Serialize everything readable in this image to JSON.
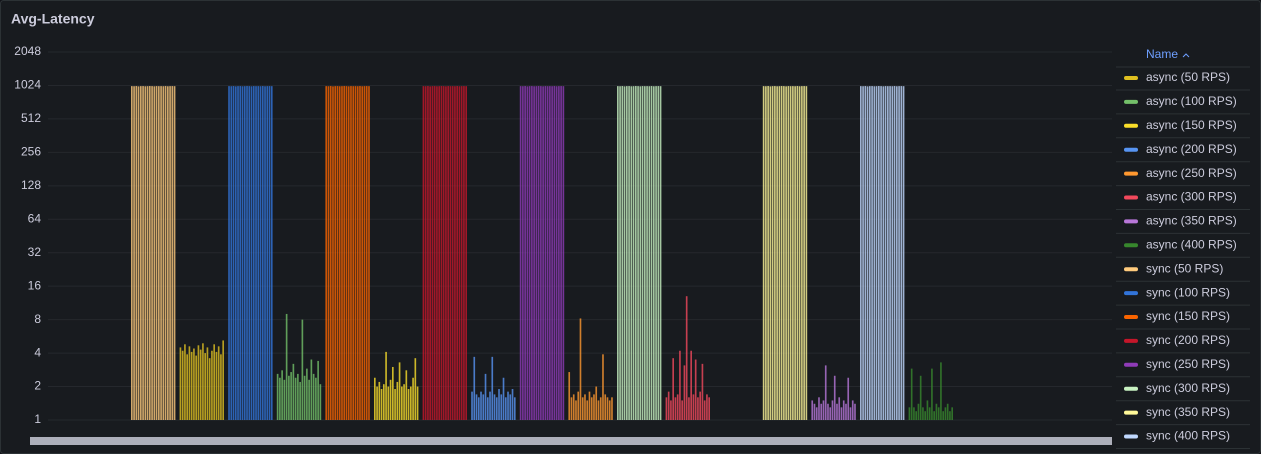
{
  "chart_data": {
    "type": "bar",
    "title": "Avg-Latency",
    "legend_header": "Name",
    "log_base": 2,
    "ylim": [
      1,
      2048
    ],
    "yticks": [
      1,
      2,
      4,
      8,
      16,
      32,
      64,
      128,
      256,
      512,
      1024,
      2048
    ],
    "grid": true,
    "series": [
      {
        "name": "async (50 RPS)",
        "color": "#e0c020",
        "values": [
          4.5,
          4.2,
          4.8,
          3.9,
          4.6,
          4.1,
          4.4,
          3.8,
          4.7,
          4.3,
          4.9,
          4.0,
          4.5,
          3.6,
          4.2,
          4.8,
          4.1,
          4.6,
          3.9,
          5.2
        ]
      },
      {
        "name": "async (100 RPS)",
        "color": "#73bf69",
        "values": [
          2.6,
          2.4,
          2.8,
          2.3,
          9.0,
          2.5,
          2.7,
          3.2,
          2.4,
          2.6,
          2.2,
          8.0,
          2.5,
          2.9,
          2.3,
          3.5,
          2.6,
          2.4,
          3.4,
          2.1
        ]
      },
      {
        "name": "async (150 RPS)",
        "color": "#fade2a",
        "values": [
          2.4,
          2.0,
          2.2,
          1.9,
          2.1,
          4.1,
          2.0,
          2.3,
          3.0,
          1.9,
          2.2,
          3.3,
          2.0,
          2.1,
          2.8,
          1.9,
          2.0,
          2.4,
          3.6,
          2.0
        ]
      },
      {
        "name": "async (200 RPS)",
        "color": "#5794f2",
        "values": [
          1.8,
          3.7,
          1.7,
          1.6,
          1.8,
          1.7,
          2.6,
          1.6,
          1.8,
          3.7,
          1.7,
          1.6,
          1.9,
          1.7,
          2.4,
          1.6,
          1.8,
          1.7,
          1.9,
          1.6
        ]
      },
      {
        "name": "async (250 RPS)",
        "color": "#ff9830",
        "values": [
          2.7,
          1.6,
          1.7,
          1.5,
          1.8,
          8.2,
          1.6,
          1.7,
          1.5,
          1.8,
          1.6,
          1.7,
          2.0,
          1.5,
          1.6,
          3.9,
          1.7,
          1.6,
          1.5,
          1.6
        ]
      },
      {
        "name": "async (300 RPS)",
        "color": "#f2495c",
        "values": [
          1.6,
          1.8,
          1.5,
          3.6,
          1.6,
          1.7,
          4.2,
          1.5,
          3.1,
          13.0,
          1.6,
          4.2,
          1.7,
          3.5,
          1.6,
          1.8,
          3.2,
          1.5,
          1.7,
          1.6
        ]
      },
      {
        "name": "async (350 RPS)",
        "color": "#b877d9",
        "values": [
          1.5,
          1.4,
          1.3,
          1.6,
          1.4,
          1.5,
          3.1,
          1.4,
          1.3,
          1.5,
          2.5,
          1.4,
          1.6,
          1.3,
          1.5,
          1.4,
          2.4,
          1.3,
          1.5,
          1.4
        ]
      },
      {
        "name": "async (400 RPS)",
        "color": "#37872d",
        "values": [
          1.3,
          2.9,
          1.3,
          1.2,
          1.4,
          2.5,
          1.3,
          1.2,
          1.5,
          1.3,
          2.9,
          1.2,
          1.4,
          1.3,
          3.3,
          1.2,
          1.3,
          1.4,
          1.2,
          1.3
        ]
      },
      {
        "name": "sync (50 RPS)",
        "color": "#ffcb7d",
        "values": [
          1010,
          1008,
          1012,
          1005,
          1010,
          1011,
          1007,
          1009,
          1012,
          1010,
          1006,
          1011,
          1009,
          1010,
          1008,
          1012,
          1007,
          1010,
          1011,
          1009
        ]
      },
      {
        "name": "sync (100 RPS)",
        "color": "#3274d9",
        "values": [
          1010,
          1008,
          1012,
          1005,
          1010,
          1011,
          1007,
          1009,
          1012,
          1010,
          1006,
          1011,
          1009,
          1010,
          1008,
          1012,
          1007,
          1010,
          1011,
          1009
        ]
      },
      {
        "name": "sync (150 RPS)",
        "color": "#fa6400",
        "values": [
          1010,
          1008,
          1012,
          1005,
          1010,
          1011,
          1007,
          1009,
          1012,
          1010,
          1006,
          1011,
          1009,
          1010,
          1008,
          1012,
          1007,
          1010,
          1011,
          1009
        ]
      },
      {
        "name": "sync (200 RPS)",
        "color": "#c4162a",
        "values": [
          1010,
          1008,
          1012,
          1005,
          1010,
          1011,
          1007,
          1009,
          1012,
          1010,
          1006,
          1011,
          1009,
          1010,
          1008,
          1012,
          1007,
          1010,
          1011,
          1009
        ]
      },
      {
        "name": "sync (250 RPS)",
        "color": "#8f3bb8",
        "values": [
          1010,
          1008,
          1012,
          1005,
          1010,
          1011,
          1007,
          1009,
          1012,
          1010,
          1006,
          1011,
          1009,
          1010,
          1008,
          1012,
          1007,
          1010,
          1011,
          1009
        ]
      },
      {
        "name": "sync (300 RPS)",
        "color": "#c8f2c2",
        "values": [
          1010,
          1008,
          1012,
          1005,
          1010,
          1011,
          1007,
          1009,
          1012,
          1010,
          1006,
          1011,
          1009,
          1010,
          1008,
          1012,
          1007,
          1010,
          1011,
          1009
        ]
      },
      {
        "name": "sync (350 RPS)",
        "color": "#fff899",
        "values": [
          1010,
          1008,
          1012,
          1005,
          1010,
          1011,
          1007,
          1009,
          1012,
          1010,
          1006,
          1011,
          1009,
          1010,
          1008,
          1012,
          1007,
          1010,
          1011,
          1009
        ]
      },
      {
        "name": "sync (400 RPS)",
        "color": "#c0d8ff",
        "values": [
          1010,
          1008,
          1012,
          1005,
          1010,
          1011,
          1007,
          1009,
          1012,
          1010,
          1006,
          1011,
          1009,
          1010,
          1008,
          1012,
          1007,
          1010,
          1011,
          1009
        ]
      }
    ]
  }
}
